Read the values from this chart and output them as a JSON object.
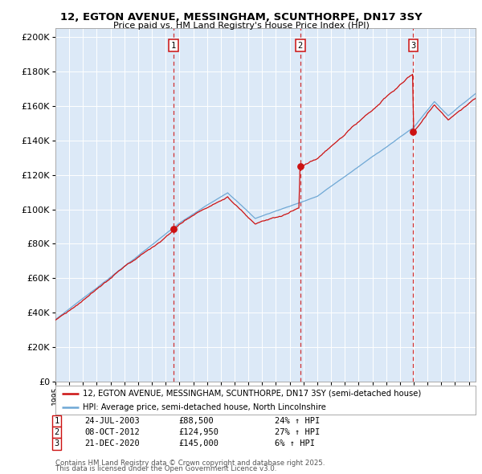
{
  "title": "12, EGTON AVENUE, MESSINGHAM, SCUNTHORPE, DN17 3SY",
  "subtitle": "Price paid vs. HM Land Registry's House Price Index (HPI)",
  "legend_line1": "12, EGTON AVENUE, MESSINGHAM, SCUNTHORPE, DN17 3SY (semi-detached house)",
  "legend_line2": "HPI: Average price, semi-detached house, North Lincolnshire",
  "footer1": "Contains HM Land Registry data © Crown copyright and database right 2025.",
  "footer2": "This data is licensed under the Open Government Licence v3.0.",
  "sale_events": [
    {
      "num": 1,
      "date_str": "24-JUL-2003",
      "price": 88500,
      "pct": "24%",
      "x": 2003.56
    },
    {
      "num": 2,
      "date_str": "08-OCT-2012",
      "price": 124950,
      "pct": "27%",
      "x": 2012.77
    },
    {
      "num": 3,
      "date_str": "21-DEC-2020",
      "price": 145000,
      "pct": "6%",
      "x": 2020.97
    }
  ],
  "hpi_color": "#6fa8d5",
  "price_color": "#cc1111",
  "vline_color": "#cc1111",
  "ylim": [
    0,
    205000
  ],
  "yticks": [
    0,
    20000,
    40000,
    60000,
    80000,
    100000,
    120000,
    140000,
    160000,
    180000,
    200000
  ],
  "xlim": [
    1995.0,
    2025.5
  ],
  "plot_bg": "#dce9f7",
  "fig_bg": "white"
}
